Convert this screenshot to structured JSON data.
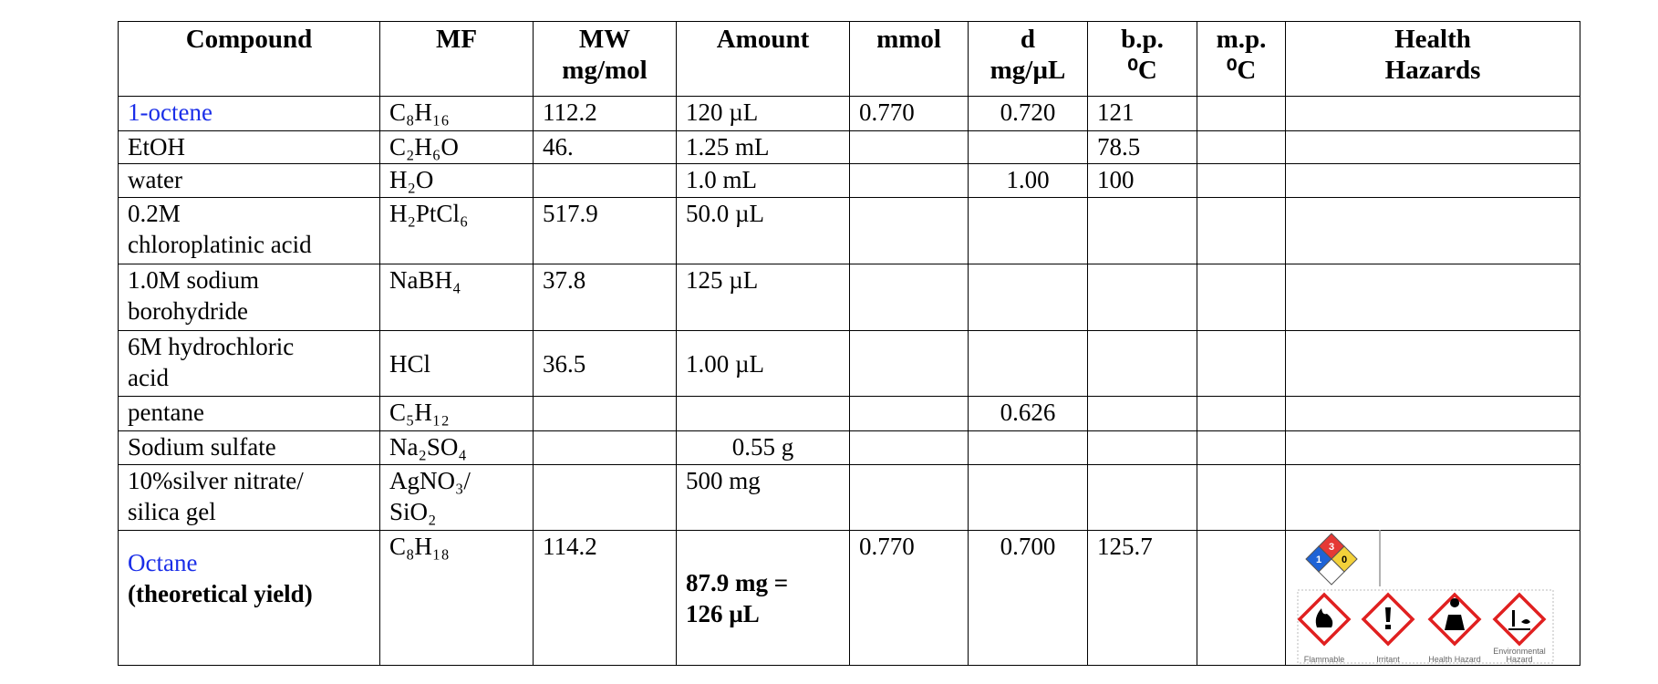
{
  "table": {
    "header": [
      "Compound",
      "MF",
      "MW\nmg/mol",
      "Amount",
      "mmol",
      "d\nmg/µL",
      "b.p.\n⁰C",
      "m.p.\n⁰C",
      "Health\nHazards"
    ],
    "rows": [
      [
        "1-octene",
        "C₈H₁₆",
        "112.2",
        "120 µL",
        "0.770",
        "0.720",
        "121",
        null,
        null
      ],
      [
        "EtOH",
        "C₂H₆O",
        "46.",
        "1.25 mL",
        null,
        null,
        "78.5",
        null,
        null
      ],
      [
        "water",
        "H₂O",
        null,
        "1.0 mL",
        null,
        "1.00",
        "100",
        null,
        null
      ],
      [
        "0.2M\nchloroplatinic acid",
        "H₂PtCl₆",
        "517.9",
        "50.0 µL",
        null,
        null,
        null,
        null,
        null
      ],
      [
        "1.0M sodium\nborohydride",
        "NaBH₄",
        "37.8",
        "125 µL",
        null,
        null,
        null,
        null,
        null
      ],
      [
        "6M    hydrochloric\nacid",
        "HCl",
        "36.5",
        "1.00 µL",
        null,
        null,
        null,
        null,
        null
      ],
      [
        "pentane",
        "C₅H₁₂",
        null,
        null,
        null,
        "0.626",
        null,
        null,
        null
      ],
      [
        "Sodium sulfate",
        "Na₂SO₄",
        null,
        "0.55 g",
        null,
        null,
        null,
        null,
        null
      ],
      [
        "10%silver   nitrate/\nsilica gel",
        "AgNO₃/\nSiO₂",
        null,
        "500 mg",
        null,
        null,
        null,
        null,
        null
      ],
      [
        [
          "Octane",
          "(theoretical yield)"
        ],
        "C₈H₁₈",
        "114.2",
        "87.9 mg =\n126 µL",
        "0.770",
        "0.700",
        "125.7",
        null,
        null
      ]
    ],
    "hazards": {
      "nfpa": {
        "flammability": 3,
        "health": 1,
        "reactivity": 0
      },
      "pictograms": [
        "Flammable",
        "Irritant",
        "Health Hazard",
        "Environmental\nHazard"
      ]
    }
  }
}
